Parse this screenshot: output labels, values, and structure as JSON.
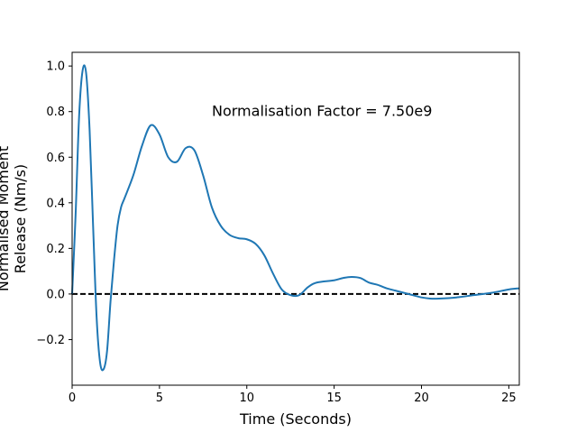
{
  "chart_data": {
    "type": "line",
    "title": "",
    "xlabel": "Time (Seconds)",
    "ylabel_lines": [
      "Normalised Moment",
      "Release (Nm/s)"
    ],
    "xlim": [
      0,
      25.6
    ],
    "ylim": [
      -0.4,
      1.06
    ],
    "x_ticks": [
      0,
      5,
      10,
      15,
      20,
      25
    ],
    "x_tick_labels": [
      "0",
      "5",
      "10",
      "15",
      "20",
      "25"
    ],
    "y_ticks": [
      -0.2,
      0.0,
      0.2,
      0.4,
      0.6,
      0.8,
      1.0
    ],
    "y_tick_labels": [
      "−0.2",
      "0.0",
      "0.2",
      "0.4",
      "0.6",
      "0.8",
      "1.0"
    ],
    "grid": false,
    "annotation": {
      "text": "Normalisation Factor = 7.50e9",
      "x": 8.0,
      "y": 0.8
    },
    "reference_line": {
      "y": 0.0,
      "style": "dashed",
      "color": "#000000"
    },
    "series": [
      {
        "color": "#1f77b4",
        "x": [
          0,
          0.2,
          0.4,
          0.6,
          0.8,
          1.0,
          1.2,
          1.4,
          1.6,
          1.8,
          2.0,
          2.2,
          2.4,
          2.6,
          2.8,
          3.0,
          3.5,
          4.0,
          4.5,
          5.0,
          5.5,
          6.0,
          6.5,
          7.0,
          7.5,
          8.0,
          8.5,
          9.0,
          9.5,
          10.0,
          10.5,
          11.0,
          11.5,
          12.0,
          12.5,
          13.0,
          13.5,
          14.0,
          15.0,
          15.5,
          16.0,
          16.5,
          17.0,
          17.5,
          18.0,
          18.5,
          19.0,
          19.5,
          20.0,
          20.5,
          21.0,
          22.0,
          23.0,
          24.0,
          25.0,
          25.6
        ],
        "y": [
          0.0,
          0.35,
          0.78,
          0.98,
          0.97,
          0.72,
          0.3,
          -0.1,
          -0.3,
          -0.33,
          -0.25,
          -0.03,
          0.15,
          0.3,
          0.38,
          0.42,
          0.52,
          0.65,
          0.74,
          0.7,
          0.6,
          0.58,
          0.64,
          0.63,
          0.52,
          0.38,
          0.3,
          0.26,
          0.245,
          0.24,
          0.22,
          0.17,
          0.09,
          0.02,
          -0.005,
          -0.005,
          0.03,
          0.05,
          0.06,
          0.07,
          0.075,
          0.07,
          0.05,
          0.04,
          0.025,
          0.015,
          0.005,
          -0.005,
          -0.015,
          -0.02,
          -0.02,
          -0.015,
          -0.005,
          0.005,
          0.02,
          0.025
        ]
      }
    ]
  }
}
